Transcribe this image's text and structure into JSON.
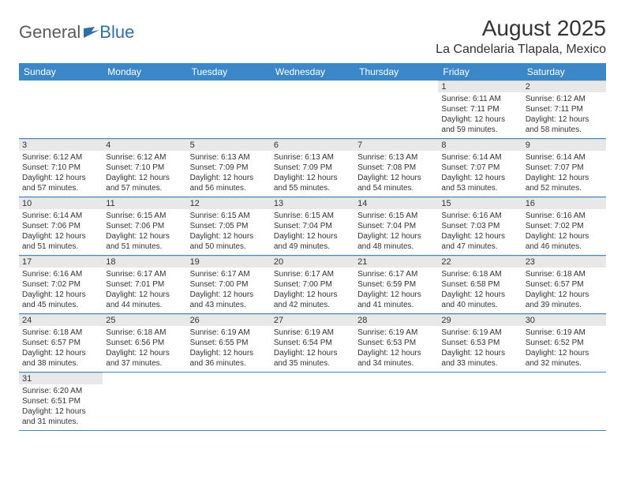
{
  "logo": {
    "general": "General",
    "blue": "Blue"
  },
  "title": "August 2025",
  "location": "La Candelaria Tlapala, Mexico",
  "colors": {
    "header_bg": "#3b87c8",
    "header_text": "#ffffff",
    "daynum_bg": "#e8e8e8",
    "row_divider": "#3b87c8",
    "logo_gray": "#5a5a5a",
    "logo_blue": "#2f6fa8",
    "text": "#333333",
    "page_bg": "#ffffff"
  },
  "daysOfWeek": [
    "Sunday",
    "Monday",
    "Tuesday",
    "Wednesday",
    "Thursday",
    "Friday",
    "Saturday"
  ],
  "weeks": [
    [
      {
        "n": "",
        "sr": "",
        "ss": "",
        "dl": ""
      },
      {
        "n": "",
        "sr": "",
        "ss": "",
        "dl": ""
      },
      {
        "n": "",
        "sr": "",
        "ss": "",
        "dl": ""
      },
      {
        "n": "",
        "sr": "",
        "ss": "",
        "dl": ""
      },
      {
        "n": "",
        "sr": "",
        "ss": "",
        "dl": ""
      },
      {
        "n": "1",
        "sr": "Sunrise: 6:11 AM",
        "ss": "Sunset: 7:11 PM",
        "dl": "Daylight: 12 hours and 59 minutes."
      },
      {
        "n": "2",
        "sr": "Sunrise: 6:12 AM",
        "ss": "Sunset: 7:11 PM",
        "dl": "Daylight: 12 hours and 58 minutes."
      }
    ],
    [
      {
        "n": "3",
        "sr": "Sunrise: 6:12 AM",
        "ss": "Sunset: 7:10 PM",
        "dl": "Daylight: 12 hours and 57 minutes."
      },
      {
        "n": "4",
        "sr": "Sunrise: 6:12 AM",
        "ss": "Sunset: 7:10 PM",
        "dl": "Daylight: 12 hours and 57 minutes."
      },
      {
        "n": "5",
        "sr": "Sunrise: 6:13 AM",
        "ss": "Sunset: 7:09 PM",
        "dl": "Daylight: 12 hours and 56 minutes."
      },
      {
        "n": "6",
        "sr": "Sunrise: 6:13 AM",
        "ss": "Sunset: 7:09 PM",
        "dl": "Daylight: 12 hours and 55 minutes."
      },
      {
        "n": "7",
        "sr": "Sunrise: 6:13 AM",
        "ss": "Sunset: 7:08 PM",
        "dl": "Daylight: 12 hours and 54 minutes."
      },
      {
        "n": "8",
        "sr": "Sunrise: 6:14 AM",
        "ss": "Sunset: 7:07 PM",
        "dl": "Daylight: 12 hours and 53 minutes."
      },
      {
        "n": "9",
        "sr": "Sunrise: 6:14 AM",
        "ss": "Sunset: 7:07 PM",
        "dl": "Daylight: 12 hours and 52 minutes."
      }
    ],
    [
      {
        "n": "10",
        "sr": "Sunrise: 6:14 AM",
        "ss": "Sunset: 7:06 PM",
        "dl": "Daylight: 12 hours and 51 minutes."
      },
      {
        "n": "11",
        "sr": "Sunrise: 6:15 AM",
        "ss": "Sunset: 7:06 PM",
        "dl": "Daylight: 12 hours and 51 minutes."
      },
      {
        "n": "12",
        "sr": "Sunrise: 6:15 AM",
        "ss": "Sunset: 7:05 PM",
        "dl": "Daylight: 12 hours and 50 minutes."
      },
      {
        "n": "13",
        "sr": "Sunrise: 6:15 AM",
        "ss": "Sunset: 7:04 PM",
        "dl": "Daylight: 12 hours and 49 minutes."
      },
      {
        "n": "14",
        "sr": "Sunrise: 6:15 AM",
        "ss": "Sunset: 7:04 PM",
        "dl": "Daylight: 12 hours and 48 minutes."
      },
      {
        "n": "15",
        "sr": "Sunrise: 6:16 AM",
        "ss": "Sunset: 7:03 PM",
        "dl": "Daylight: 12 hours and 47 minutes."
      },
      {
        "n": "16",
        "sr": "Sunrise: 6:16 AM",
        "ss": "Sunset: 7:02 PM",
        "dl": "Daylight: 12 hours and 46 minutes."
      }
    ],
    [
      {
        "n": "17",
        "sr": "Sunrise: 6:16 AM",
        "ss": "Sunset: 7:02 PM",
        "dl": "Daylight: 12 hours and 45 minutes."
      },
      {
        "n": "18",
        "sr": "Sunrise: 6:17 AM",
        "ss": "Sunset: 7:01 PM",
        "dl": "Daylight: 12 hours and 44 minutes."
      },
      {
        "n": "19",
        "sr": "Sunrise: 6:17 AM",
        "ss": "Sunset: 7:00 PM",
        "dl": "Daylight: 12 hours and 43 minutes."
      },
      {
        "n": "20",
        "sr": "Sunrise: 6:17 AM",
        "ss": "Sunset: 7:00 PM",
        "dl": "Daylight: 12 hours and 42 minutes."
      },
      {
        "n": "21",
        "sr": "Sunrise: 6:17 AM",
        "ss": "Sunset: 6:59 PM",
        "dl": "Daylight: 12 hours and 41 minutes."
      },
      {
        "n": "22",
        "sr": "Sunrise: 6:18 AM",
        "ss": "Sunset: 6:58 PM",
        "dl": "Daylight: 12 hours and 40 minutes."
      },
      {
        "n": "23",
        "sr": "Sunrise: 6:18 AM",
        "ss": "Sunset: 6:57 PM",
        "dl": "Daylight: 12 hours and 39 minutes."
      }
    ],
    [
      {
        "n": "24",
        "sr": "Sunrise: 6:18 AM",
        "ss": "Sunset: 6:57 PM",
        "dl": "Daylight: 12 hours and 38 minutes."
      },
      {
        "n": "25",
        "sr": "Sunrise: 6:18 AM",
        "ss": "Sunset: 6:56 PM",
        "dl": "Daylight: 12 hours and 37 minutes."
      },
      {
        "n": "26",
        "sr": "Sunrise: 6:19 AM",
        "ss": "Sunset: 6:55 PM",
        "dl": "Daylight: 12 hours and 36 minutes."
      },
      {
        "n": "27",
        "sr": "Sunrise: 6:19 AM",
        "ss": "Sunset: 6:54 PM",
        "dl": "Daylight: 12 hours and 35 minutes."
      },
      {
        "n": "28",
        "sr": "Sunrise: 6:19 AM",
        "ss": "Sunset: 6:53 PM",
        "dl": "Daylight: 12 hours and 34 minutes."
      },
      {
        "n": "29",
        "sr": "Sunrise: 6:19 AM",
        "ss": "Sunset: 6:53 PM",
        "dl": "Daylight: 12 hours and 33 minutes."
      },
      {
        "n": "30",
        "sr": "Sunrise: 6:19 AM",
        "ss": "Sunset: 6:52 PM",
        "dl": "Daylight: 12 hours and 32 minutes."
      }
    ],
    [
      {
        "n": "31",
        "sr": "Sunrise: 6:20 AM",
        "ss": "Sunset: 6:51 PM",
        "dl": "Daylight: 12 hours and 31 minutes."
      },
      {
        "n": "",
        "sr": "",
        "ss": "",
        "dl": ""
      },
      {
        "n": "",
        "sr": "",
        "ss": "",
        "dl": ""
      },
      {
        "n": "",
        "sr": "",
        "ss": "",
        "dl": ""
      },
      {
        "n": "",
        "sr": "",
        "ss": "",
        "dl": ""
      },
      {
        "n": "",
        "sr": "",
        "ss": "",
        "dl": ""
      },
      {
        "n": "",
        "sr": "",
        "ss": "",
        "dl": ""
      }
    ]
  ]
}
